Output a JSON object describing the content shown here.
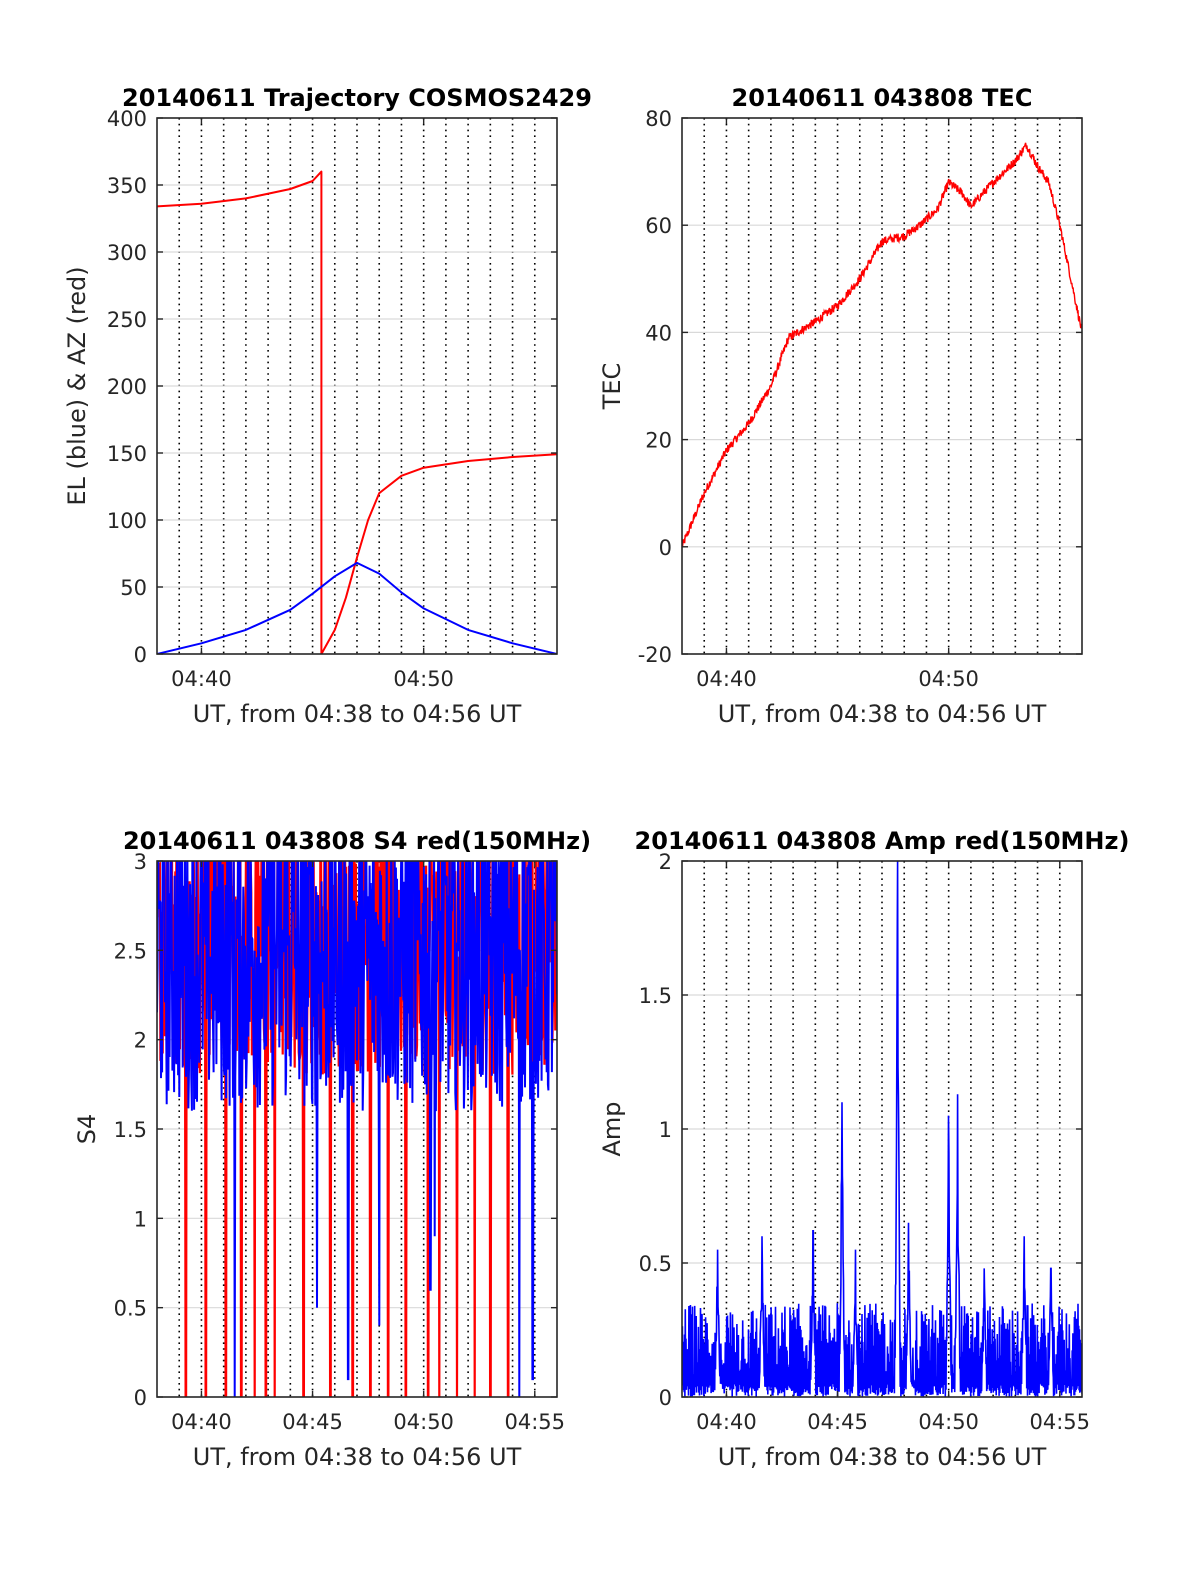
{
  "x_axis": {
    "label": "UT, from 04:38 to 04:56 UT",
    "range": [
      "04:38",
      "04:56"
    ],
    "minor_grid_every_min": 1
  },
  "chart_data": [
    {
      "id": "trajectory",
      "type": "line",
      "title": "20140611 Trajectory COSMOS2429",
      "xlabel": "UT, from 04:38 to 04:56 UT",
      "ylabel": "EL (blue) & AZ (red)",
      "xlim": [
        "04:38",
        "04:56"
      ],
      "xticks": [
        "04:40",
        "04:50"
      ],
      "ylim": [
        0,
        400
      ],
      "yticks": [
        0,
        50,
        100,
        150,
        200,
        250,
        300,
        350,
        400
      ],
      "grid": true,
      "series": [
        {
          "color": "#ff0000",
          "points": [
            [
              "04:38",
              334
            ],
            [
              "04:40",
              336
            ],
            [
              "04:42",
              340
            ],
            [
              "04:44",
              347
            ],
            [
              "04:45",
              353
            ],
            [
              "04:45.4",
              360
            ],
            [
              "04:45.4",
              0
            ],
            [
              "04:46",
              18
            ],
            [
              "04:46.5",
              42
            ],
            [
              "04:47",
              72
            ],
            [
              "04:47.5",
              100
            ],
            [
              "04:48",
              120
            ],
            [
              "04:49",
              133
            ],
            [
              "04:50",
              139
            ],
            [
              "04:52",
              144
            ],
            [
              "04:54",
              147
            ],
            [
              "04:56",
              149
            ]
          ]
        },
        {
          "color": "#0000ff",
          "points": [
            [
              "04:38",
              0
            ],
            [
              "04:40",
              8
            ],
            [
              "04:42",
              18
            ],
            [
              "04:44",
              33
            ],
            [
              "04:45",
              45
            ],
            [
              "04:46",
              58
            ],
            [
              "04:47",
              68
            ],
            [
              "04:48",
              60
            ],
            [
              "04:49",
              46
            ],
            [
              "04:50",
              34
            ],
            [
              "04:52",
              18
            ],
            [
              "04:54",
              8
            ],
            [
              "04:56",
              0
            ]
          ]
        }
      ]
    },
    {
      "id": "tec",
      "type": "line",
      "title": "20140611 043808 TEC",
      "xlabel": "UT, from 04:38 to 04:56 UT",
      "ylabel": "TEC",
      "xlim": [
        "04:38",
        "04:56"
      ],
      "xticks": [
        "04:40",
        "04:50"
      ],
      "ylim": [
        -20,
        80
      ],
      "yticks": [
        -20,
        0,
        20,
        40,
        60,
        80
      ],
      "grid": true,
      "series": [
        {
          "color": "#ff0000",
          "points": [
            [
              "04:38",
              0
            ],
            [
              "04:39",
              10
            ],
            [
              "04:40",
              18
            ],
            [
              "04:41",
              23
            ],
            [
              "04:42",
              30
            ],
            [
              "04:42.8",
              39
            ],
            [
              "04:44",
              42
            ],
            [
              "04:45",
              45
            ],
            [
              "04:46",
              50
            ],
            [
              "04:47",
              57
            ],
            [
              "04:48",
              58
            ],
            [
              "04:48.7",
              60
            ],
            [
              "04:49.5",
              63
            ],
            [
              "04:50",
              68
            ],
            [
              "04:50.6",
              66
            ],
            [
              "04:51",
              63.5
            ],
            [
              "04:52",
              68
            ],
            [
              "04:53",
              72
            ],
            [
              "04:53.5",
              75
            ],
            [
              "04:54",
              71
            ],
            [
              "04:54.5",
              68
            ],
            [
              "04:55",
              60
            ],
            [
              "04:56",
              40
            ]
          ]
        }
      ]
    },
    {
      "id": "s4",
      "type": "line",
      "title": "20140611 043808 S4 red(150MHz)",
      "xlabel": "UT, from 04:38 to 04:56 UT",
      "ylabel": "S4",
      "xlim": [
        "04:38",
        "04:56"
      ],
      "xticks": [
        "04:40",
        "04:45",
        "04:50",
        "04:55"
      ],
      "ylim": [
        0,
        3
      ],
      "yticks": [
        0,
        0.5,
        1,
        1.5,
        2,
        2.5,
        3
      ],
      "grid": true,
      "series": [
        {
          "color": "#ff0000",
          "typical_range": [
            1.8,
            3.0
          ],
          "dropouts_to_zero": [
            "04:39.3",
            "04:40.2",
            "04:41.1",
            "04:41.8",
            "04:42.4",
            "04:42.9",
            "04:43.3",
            "04:44.6",
            "04:45.8",
            "04:46.8",
            "04:47.6",
            "04:48.4",
            "04:49.2",
            "04:50.2",
            "04:50.7",
            "04:51.5",
            "04:52.3",
            "04:53.0",
            "04:53.8"
          ]
        },
        {
          "color": "#0000ff",
          "typical_range": [
            1.6,
            3.0
          ],
          "dips": [
            [
              "04:41.5",
              0
            ],
            [
              "04:45.2",
              0.5
            ],
            [
              "04:46.6",
              0.1
            ],
            [
              "04:48.0",
              0.4
            ],
            [
              "04:50.3",
              0.6
            ],
            [
              "04:50.5",
              0.9
            ],
            [
              "04:54.3",
              0
            ],
            [
              "04:54.9",
              0.1
            ]
          ]
        }
      ]
    },
    {
      "id": "amp",
      "type": "line",
      "title": "20140611 043808 Amp red(150MHz)",
      "xlabel": "UT, from 04:38 to 04:56 UT",
      "ylabel": "Amp",
      "xlim": [
        "04:38",
        "04:56"
      ],
      "xticks": [
        "04:40",
        "04:45",
        "04:50",
        "04:55"
      ],
      "ylim": [
        0,
        2
      ],
      "yticks": [
        0,
        0.5,
        1,
        1.5,
        2
      ],
      "grid": true,
      "series": [
        {
          "color": "#0000ff",
          "baseline_range": [
            0.05,
            0.35
          ],
          "peaks": [
            [
              "04:39.6",
              0.55
            ],
            [
              "04:41.6",
              0.6
            ],
            [
              "04:43.9",
              0.62
            ],
            [
              "04:45.2",
              1.1
            ],
            [
              "04:45.8",
              0.55
            ],
            [
              "04:47.7",
              2.0
            ],
            [
              "04:48.2",
              0.65
            ],
            [
              "04:50.0",
              1.05
            ],
            [
              "04:50.4",
              1.13
            ],
            [
              "04:51.6",
              0.48
            ],
            [
              "04:53.4",
              0.6
            ],
            [
              "04:54.6",
              0.48
            ]
          ]
        }
      ]
    }
  ]
}
